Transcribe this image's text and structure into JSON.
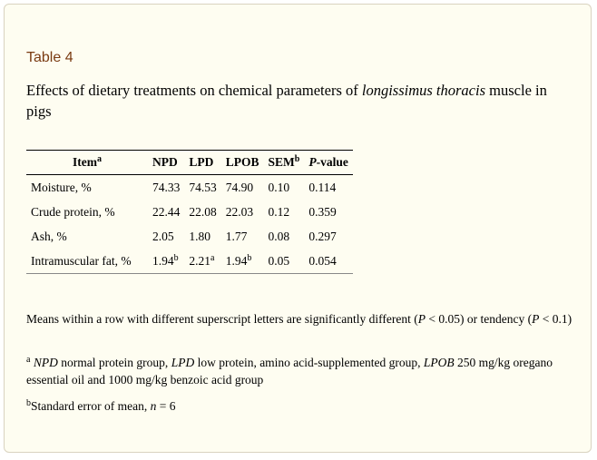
{
  "label": "Table 4",
  "caption": {
    "before": "Effects of dietary treatments on chemical parameters of ",
    "italic": "longissimus thoracis",
    "after": " muscle in pigs"
  },
  "table": {
    "headers": {
      "item": "Item",
      "item_sup": "a",
      "npd": "NPD",
      "lpd": "LPD",
      "lpob": "LPOB",
      "sem": "SEM",
      "sem_sup": "b",
      "p_italic": "P",
      "p_rest": "-value"
    },
    "rows": [
      {
        "item": "Moisture, %",
        "npd": "74.33",
        "npd_sup": "",
        "lpd": "74.53",
        "lpd_sup": "",
        "lpob": "74.90",
        "lpob_sup": "",
        "sem": "0.10",
        "p": "0.114"
      },
      {
        "item": "Crude protein, %",
        "npd": "22.44",
        "npd_sup": "",
        "lpd": "22.08",
        "lpd_sup": "",
        "lpob": "22.03",
        "lpob_sup": "",
        "sem": "0.12",
        "p": "0.359"
      },
      {
        "item": "Ash, %",
        "npd": "2.05",
        "npd_sup": "",
        "lpd": "1.80",
        "lpd_sup": "",
        "lpob": "1.77",
        "lpob_sup": "",
        "sem": "0.08",
        "p": "0.297"
      },
      {
        "item": "Intramuscular fat, %",
        "npd": "1.94",
        "npd_sup": "b",
        "lpd": "2.21",
        "lpd_sup": "a",
        "lpob": "1.94",
        "lpob_sup": "b",
        "sem": "0.05",
        "p": "0.054"
      }
    ]
  },
  "footnotes": {
    "means": {
      "t1": "Means within a row with different superscript letters are significantly different (",
      "p1": "P",
      "t2": " < 0.05) or tendency (",
      "p2": "P",
      "t3": " < 0.1)"
    },
    "a": {
      "sup": "a",
      "npd_abbr": "NPD",
      "npd_text": " normal protein group, ",
      "lpd_abbr": "LPD",
      "lpd_text": " low protein, amino acid-supplemented group, ",
      "lpob_abbr": "LPOB",
      "lpob_text": " 250 mg/kg oregano essential oil and 1000 mg/kg benzoic acid group"
    },
    "b": {
      "sup": "b",
      "t1": "Standard error of mean, ",
      "n": "n",
      "t2": " = 6"
    }
  }
}
